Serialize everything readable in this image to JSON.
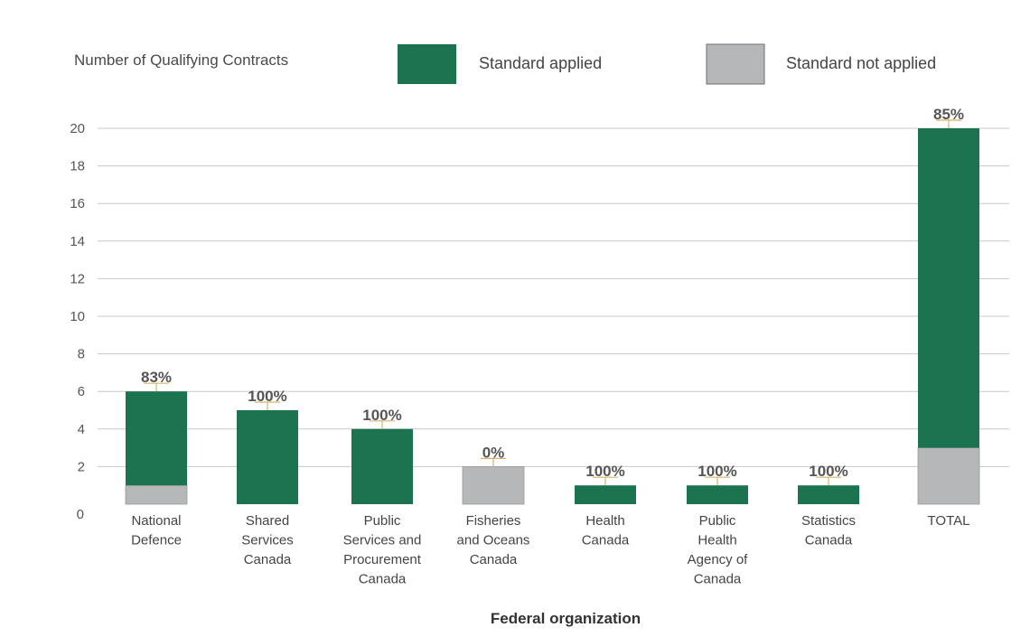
{
  "chart_data": {
    "type": "bar",
    "stacked": true,
    "ylabel": "Number of Qualifying Contracts",
    "xlabel": "Federal organization",
    "ylim": [
      0,
      20
    ],
    "yticks": [
      0,
      2,
      4,
      6,
      8,
      10,
      12,
      14,
      16,
      18,
      20
    ],
    "grid": true,
    "legend_position": "top",
    "categories": [
      [
        "National",
        "Defence"
      ],
      [
        "Shared",
        "Services",
        "Canada"
      ],
      [
        "Public",
        "Services and",
        "Procurement",
        "Canada"
      ],
      [
        "Fisheries",
        "and Oceans",
        "Canada"
      ],
      [
        "Health",
        "Canada"
      ],
      [
        "Public",
        "Health",
        "Agency of",
        "Canada"
      ],
      [
        "Statistics",
        "Canada"
      ],
      [
        "TOTAL"
      ]
    ],
    "series": [
      {
        "name": "Standard not applied",
        "color": "#b6b7b9",
        "values": [
          1,
          0,
          0,
          2,
          0,
          0,
          0,
          3
        ]
      },
      {
        "name": "Standard applied",
        "color": "#1c7350",
        "values": [
          5,
          5,
          4,
          0,
          1,
          1,
          1,
          17
        ]
      }
    ],
    "data_labels": [
      "83%",
      "100%",
      "100%",
      "0%",
      "100%",
      "100%",
      "100%",
      "85%"
    ],
    "colors": {
      "grid": "#c8c8c8",
      "error_tick": "#d4b46a"
    }
  }
}
